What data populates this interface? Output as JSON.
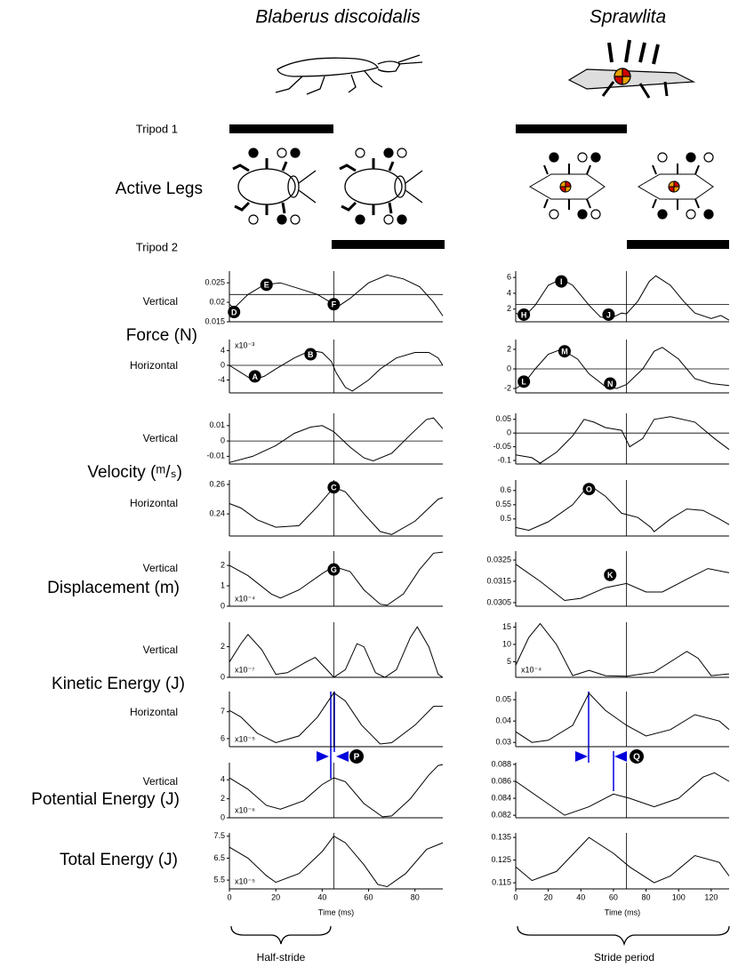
{
  "figure": {
    "columns": [
      "Blaberus discoidalis",
      "Sprawlita"
    ],
    "tripod1": "Tripod 1",
    "active_legs": "Active Legs",
    "tripod2": "Tripod 2",
    "row_labels": [
      "Vertical",
      "Force (N)",
      "Horizontal",
      "Vertical",
      "Velocity (ᵐ/ₛ)",
      "Horizontal",
      "Vertical",
      "Displacement (m)",
      "Vertical",
      "Kinetic Energy (J)",
      "Horizontal",
      "Vertical",
      "Potential Energy (J)",
      "Total Energy (J)"
    ],
    "x_label": "Time (ms)",
    "braces": [
      "Half-stride",
      "Stride period"
    ],
    "markers": [
      "P",
      "Q"
    ]
  },
  "chart_data": [
    {
      "type": "line",
      "color": "#000",
      "xlim": [
        0,
        92
      ],
      "ylim": [
        0.015,
        0.028
      ],
      "yticks": [
        0.015,
        0.02,
        0.025
      ],
      "hline": 0.022,
      "vline": 45,
      "x": [
        0,
        2,
        8,
        15,
        22,
        30,
        38,
        45,
        47,
        52,
        60,
        68,
        75,
        82,
        88,
        92
      ],
      "values": [
        0.0195,
        0.0185,
        0.022,
        0.0245,
        0.025,
        0.0235,
        0.022,
        0.0195,
        0.019,
        0.021,
        0.025,
        0.027,
        0.026,
        0.024,
        0.02,
        0.0165
      ],
      "annotations": [
        {
          "text": "E",
          "x": 16,
          "y": 0.0245
        },
        {
          "text": "D",
          "x": 2,
          "y": 0.0175
        },
        {
          "text": "F",
          "x": 45,
          "y": 0.0195
        }
      ]
    },
    {
      "type": "line",
      "color": "#000",
      "xlim": [
        0,
        92
      ],
      "ylim": [
        -7.5,
        7
      ],
      "yticks": [
        -4,
        0,
        4
      ],
      "hline": 0,
      "vline": 45,
      "scale_label": "x10⁻³",
      "scale_position": "top",
      "x": [
        0,
        5,
        10,
        15,
        20,
        28,
        35,
        40,
        44,
        46,
        50,
        53,
        60,
        65,
        72,
        80,
        86,
        90,
        92
      ],
      "values": [
        0,
        -2,
        -4,
        -3,
        -1,
        2,
        4,
        3.5,
        1,
        -2,
        -6,
        -7,
        -4,
        -1,
        2,
        3.5,
        3.5,
        2,
        0
      ],
      "annotations": [
        {
          "text": "A",
          "x": 11,
          "y": -3
        },
        {
          "text": "B",
          "x": 35,
          "y": 3
        }
      ]
    },
    {
      "type": "line",
      "color": "#000",
      "xlim": [
        0,
        92
      ],
      "ylim": [
        -0.015,
        0.018
      ],
      "yticks": [
        -0.01,
        0,
        0.01
      ],
      "hline": 0,
      "vline": 45,
      "x": [
        0,
        10,
        20,
        28,
        35,
        40,
        45,
        52,
        58,
        62,
        70,
        78,
        85,
        88,
        92
      ],
      "values": [
        -0.014,
        -0.01,
        -0.003,
        0.005,
        0.009,
        0.01,
        0.006,
        -0.004,
        -0.011,
        -0.013,
        -0.008,
        0.004,
        0.014,
        0.015,
        0.008
      ],
      "annotations": []
    },
    {
      "type": "line",
      "color": "#000",
      "xlim": [
        0,
        92
      ],
      "ylim": [
        0.225,
        0.263
      ],
      "yticks": [
        0.24,
        0.26
      ],
      "vline": 45,
      "x": [
        0,
        5,
        12,
        20,
        30,
        38,
        45,
        50,
        58,
        65,
        70,
        80,
        90,
        92
      ],
      "values": [
        0.247,
        0.244,
        0.236,
        0.231,
        0.232,
        0.245,
        0.258,
        0.255,
        0.24,
        0.228,
        0.226,
        0.235,
        0.25,
        0.251
      ],
      "annotations": [
        {
          "text": "C",
          "x": 45,
          "y": 0.258
        }
      ]
    },
    {
      "type": "line",
      "color": "#000",
      "xlim": [
        0,
        92
      ],
      "ylim": [
        0,
        2.7
      ],
      "yticks": [
        0,
        1,
        2
      ],
      "vline": 45,
      "scale_label": "x10⁻⁴",
      "scale_position": "bottom",
      "x": [
        0,
        8,
        18,
        22,
        30,
        40,
        45,
        52,
        58,
        65,
        68,
        75,
        82,
        88,
        92
      ],
      "values": [
        2,
        1.5,
        0.6,
        0.4,
        0.8,
        1.6,
        1.95,
        1.7,
        0.8,
        0.1,
        0.05,
        0.6,
        1.8,
        2.6,
        2.65
      ],
      "annotations": [
        {
          "text": "G",
          "x": 45,
          "y": 1.8
        }
      ]
    },
    {
      "type": "line",
      "color": "#000",
      "xlim": [
        0,
        92
      ],
      "ylim": [
        0,
        3.6
      ],
      "yticks": [
        0,
        2
      ],
      "vline": 45,
      "scale_label": "x10⁻⁷",
      "scale_position": "bottom",
      "x": [
        0,
        5,
        8,
        14,
        20,
        25,
        33,
        37,
        42,
        45,
        50,
        55,
        58,
        63,
        67,
        72,
        78,
        81,
        86,
        90,
        92
      ],
      "values": [
        1,
        2.2,
        2.8,
        1.8,
        0.2,
        0.3,
        1,
        1.3,
        0.5,
        0,
        0.5,
        2.2,
        2,
        0.3,
        0,
        0.5,
        2.6,
        3.3,
        2,
        0.2,
        0
      ],
      "annotations": []
    },
    {
      "type": "line",
      "color": "#000",
      "xlim": [
        0,
        92
      ],
      "ylim": [
        5.7,
        7.75
      ],
      "yticks": [
        6,
        7
      ],
      "vline": 45,
      "scale_label": "x10⁻⁵",
      "scale_position": "bottom",
      "x": [
        0,
        5,
        12,
        20,
        30,
        38,
        45,
        50,
        57,
        65,
        70,
        80,
        88,
        92
      ],
      "values": [
        7.05,
        6.8,
        6.2,
        5.85,
        6.1,
        6.8,
        7.7,
        7.4,
        6.5,
        5.8,
        5.85,
        6.5,
        7.2,
        7.2
      ],
      "annotations": []
    },
    {
      "type": "line",
      "color": "#000",
      "xlim": [
        0,
        92
      ],
      "ylim": [
        0,
        5.8
      ],
      "yticks": [
        0,
        2,
        4
      ],
      "vline": 45,
      "scale_label": "x10⁻⁶",
      "scale_position": "bottom",
      "x": [
        0,
        8,
        16,
        22,
        32,
        40,
        45,
        50,
        58,
        66,
        70,
        78,
        86,
        90,
        92
      ],
      "values": [
        4.2,
        3,
        1.3,
        0.9,
        1.8,
        3.5,
        4.2,
        3.8,
        1.5,
        0.1,
        0.2,
        2,
        4.5,
        5.5,
        5.6
      ],
      "annotations": []
    },
    {
      "type": "line",
      "color": "#000",
      "xlim": [
        0,
        92
      ],
      "ylim": [
        5.1,
        7.65
      ],
      "yticks": [
        5.5,
        6.5,
        7.5
      ],
      "xticks": [
        0,
        20,
        40,
        60,
        80
      ],
      "vline": 45,
      "scale_label": "x10⁻⁵",
      "scale_position": "bottom",
      "x": [
        0,
        8,
        16,
        20,
        30,
        40,
        45,
        50,
        58,
        64,
        68,
        76,
        85,
        92
      ],
      "values": [
        7,
        6.5,
        5.7,
        5.4,
        5.8,
        6.8,
        7.5,
        7.2,
        6.2,
        5.3,
        5.2,
        5.8,
        6.9,
        7.2
      ],
      "annotations": []
    },
    {
      "type": "line",
      "color": "#000",
      "xlim": [
        0,
        131
      ],
      "ylim": [
        0.4,
        6.8
      ],
      "yticks": [
        2,
        4,
        6
      ],
      "hline": 2.6,
      "vline": 68,
      "x": [
        0,
        5,
        12,
        20,
        28,
        35,
        45,
        52,
        58,
        65,
        68,
        75,
        82,
        86,
        95,
        103,
        110,
        120,
        126,
        131
      ],
      "values": [
        1.5,
        1,
        2.5,
        5,
        5.8,
        5,
        2.5,
        1,
        0.8,
        1.5,
        1.4,
        3,
        5.5,
        6.2,
        5,
        3,
        1.5,
        0.8,
        1.2,
        0.6
      ],
      "annotations": [
        {
          "text": "I",
          "x": 28,
          "y": 5.5
        },
        {
          "text": "H",
          "x": 5,
          "y": 1.3
        },
        {
          "text": "J",
          "x": 57,
          "y": 1.3
        }
      ]
    },
    {
      "type": "line",
      "color": "#000",
      "xlim": [
        0,
        131
      ],
      "ylim": [
        -2.45,
        3
      ],
      "yticks": [
        -2,
        0,
        2
      ],
      "hline": 0,
      "vline": 68,
      "x": [
        0,
        5,
        12,
        20,
        28,
        38,
        45,
        55,
        62,
        68,
        78,
        85,
        90,
        100,
        110,
        120,
        131
      ],
      "values": [
        -2,
        -1.5,
        0,
        1.5,
        2,
        1,
        -0.5,
        -1.8,
        -2,
        -1.6,
        0,
        1.8,
        2.2,
        1,
        -1,
        -1.5,
        -1.7
      ],
      "annotations": [
        {
          "text": "L",
          "x": 5,
          "y": -1.3
        },
        {
          "text": "M",
          "x": 30,
          "y": 1.8
        },
        {
          "text": "N",
          "x": 58,
          "y": -1.5
        }
      ]
    },
    {
      "type": "line",
      "color": "#000",
      "xlim": [
        0,
        131
      ],
      "ylim": [
        -0.113,
        0.072
      ],
      "yticks": [
        -0.1,
        -0.05,
        0,
        0.05
      ],
      "hline": 0,
      "vline": 68,
      "x": [
        0,
        10,
        15,
        25,
        35,
        42,
        48,
        55,
        65,
        70,
        78,
        85,
        95,
        110,
        122,
        131
      ],
      "values": [
        -0.08,
        -0.09,
        -0.11,
        -0.07,
        -0.01,
        0.05,
        0.04,
        0.02,
        0.01,
        -0.05,
        -0.02,
        0.05,
        0.06,
        0.04,
        -0.02,
        -0.06
      ],
      "annotations": []
    },
    {
      "type": "line",
      "color": "#000",
      "xlim": [
        0,
        131
      ],
      "ylim": [
        0.44,
        0.637
      ],
      "yticks": [
        0.5,
        0.55,
        0.6
      ],
      "vline": 68,
      "x": [
        0,
        8,
        20,
        35,
        45,
        55,
        65,
        75,
        83,
        85,
        95,
        105,
        115,
        125,
        131
      ],
      "values": [
        0.47,
        0.46,
        0.49,
        0.55,
        0.62,
        0.58,
        0.52,
        0.505,
        0.47,
        0.455,
        0.5,
        0.535,
        0.53,
        0.5,
        0.48
      ],
      "annotations": [
        {
          "text": "O",
          "x": 45,
          "y": 0.605
        }
      ]
    },
    {
      "type": "line",
      "color": "#000",
      "xlim": [
        0,
        131
      ],
      "ylim": [
        0.03033,
        0.03292
      ],
      "yticks": [
        0.0305,
        0.0315,
        0.0325
      ],
      "vline": 68,
      "x": [
        0,
        15,
        30,
        40,
        55,
        68,
        80,
        90,
        105,
        118,
        131
      ],
      "values": [
        0.0323,
        0.0315,
        0.0306,
        0.0307,
        0.0312,
        0.0314,
        0.031,
        0.031,
        0.0316,
        0.0321,
        0.0319
      ],
      "annotations": [
        {
          "text": "K",
          "x": 58,
          "y": 0.0318
        }
      ]
    },
    {
      "type": "line",
      "color": "#000",
      "xlim": [
        0,
        131
      ],
      "ylim": [
        0.5,
        16.4
      ],
      "yticks": [
        5,
        10,
        15
      ],
      "vline": 68,
      "scale_label": "x10⁻⁴",
      "scale_position": "bottom",
      "x": [
        0,
        8,
        15,
        25,
        35,
        45,
        55,
        68,
        85,
        105,
        112,
        120,
        131
      ],
      "values": [
        4,
        12,
        16,
        10,
        1,
        2.5,
        1,
        0.8,
        2,
        8,
        6,
        1,
        1.5
      ],
      "annotations": []
    },
    {
      "type": "line",
      "color": "#000",
      "xlim": [
        0,
        131
      ],
      "ylim": [
        0.028,
        0.0538
      ],
      "yticks": [
        0.03,
        0.04,
        0.05
      ],
      "vline": 68,
      "x": [
        0,
        10,
        20,
        35,
        45,
        55,
        68,
        80,
        95,
        110,
        125,
        131
      ],
      "values": [
        0.035,
        0.03,
        0.031,
        0.038,
        0.053,
        0.045,
        0.038,
        0.033,
        0.036,
        0.043,
        0.04,
        0.036
      ],
      "annotations": []
    },
    {
      "type": "line",
      "color": "#000",
      "xlim": [
        0,
        131
      ],
      "ylim": [
        0.0817,
        0.0882
      ],
      "yticks": [
        0.082,
        0.084,
        0.086,
        0.088
      ],
      "vline": 68,
      "x": [
        0,
        15,
        30,
        45,
        60,
        70,
        85,
        100,
        115,
        122,
        131
      ],
      "values": [
        0.086,
        0.084,
        0.082,
        0.083,
        0.0845,
        0.084,
        0.083,
        0.084,
        0.0865,
        0.087,
        0.086
      ],
      "annotations": []
    },
    {
      "type": "line",
      "color": "#000",
      "xlim": [
        0,
        131
      ],
      "ylim": [
        0.1123,
        0.137
      ],
      "yticks": [
        0.115,
        0.125,
        0.135
      ],
      "xticks": [
        0,
        20,
        40,
        60,
        80,
        100,
        120
      ],
      "vline": 68,
      "x": [
        0,
        10,
        25,
        45,
        60,
        70,
        85,
        95,
        110,
        125,
        131
      ],
      "values": [
        0.122,
        0.116,
        0.12,
        0.135,
        0.128,
        0.122,
        0.115,
        0.118,
        0.127,
        0.124,
        0.118
      ],
      "annotations": []
    }
  ]
}
